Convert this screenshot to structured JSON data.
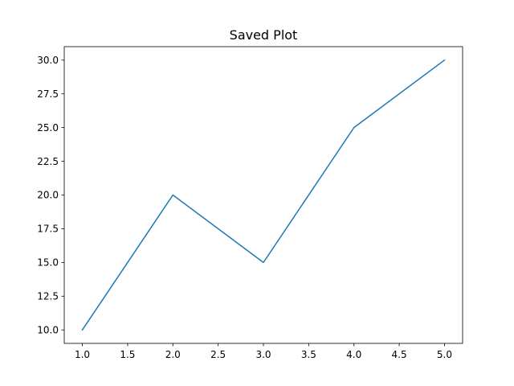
{
  "chart_data": {
    "type": "line",
    "title": "Saved Plot",
    "xlabel": "",
    "ylabel": "",
    "x": [
      1,
      2,
      3,
      4,
      5
    ],
    "series": [
      {
        "values": [
          10,
          20,
          15,
          25,
          30
        ],
        "color": "#1f77b4"
      }
    ],
    "xlim": [
      0.8,
      5.2
    ],
    "ylim": [
      9.0,
      31.0
    ],
    "xticks": [
      1.0,
      1.5,
      2.0,
      2.5,
      3.0,
      3.5,
      4.0,
      4.5,
      5.0
    ],
    "xtick_labels": [
      "1.0",
      "1.5",
      "2.0",
      "2.5",
      "3.0",
      "3.5",
      "4.0",
      "4.5",
      "5.0"
    ],
    "yticks": [
      10.0,
      12.5,
      15.0,
      17.5,
      20.0,
      22.5,
      25.0,
      27.5,
      30.0
    ],
    "ytick_labels": [
      "10.0",
      "12.5",
      "15.0",
      "17.5",
      "20.0",
      "22.5",
      "25.0",
      "27.5",
      "30.0"
    ],
    "grid": false,
    "legend": "none"
  }
}
